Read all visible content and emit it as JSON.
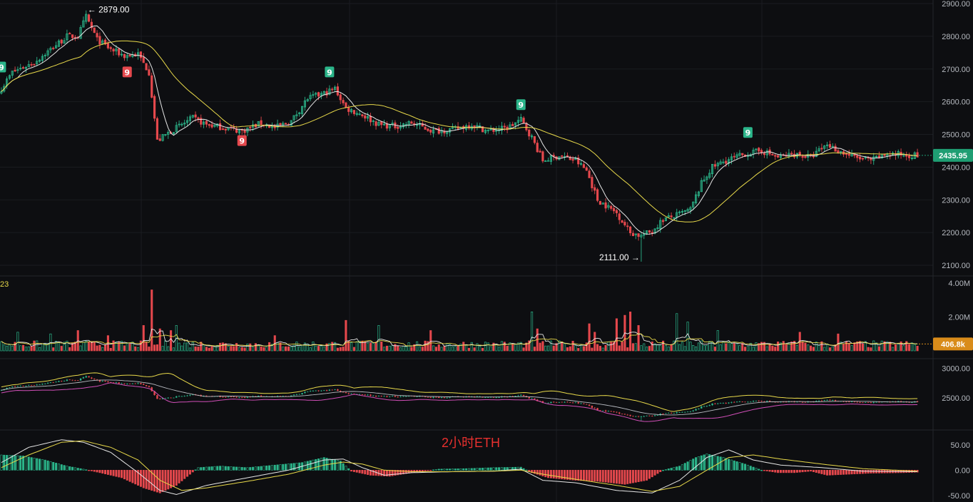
{
  "chart_data": {
    "type": "candlestick",
    "watermark_title": "2小时ETH",
    "colors": {
      "background": "#0d0e11",
      "up": "#2bb58a",
      "down": "#e5484d",
      "ma_white": "#e6e6e6",
      "ma_yellow": "#e8d94a",
      "band_magenta": "#d14fb8",
      "price_badge": "#1f9e73",
      "volume_badge": "#d98c1a"
    },
    "price_panel": {
      "ylim": [
        2100,
        2900
      ],
      "y_ticks": [
        "2900.00",
        "2800.00",
        "2700.00",
        "2600.00",
        "2500.00",
        "2400.00",
        "2300.00",
        "2200.00",
        "2100.00"
      ],
      "current_price": "2435.95",
      "high_label": "2879.00",
      "low_label": "2111.00",
      "high_value": 2879,
      "low_value": 2111,
      "anchors": [
        [
          0,
          2640
        ],
        [
          4,
          2690
        ],
        [
          12,
          2720
        ],
        [
          18,
          2760
        ],
        [
          24,
          2800
        ],
        [
          28,
          2800
        ],
        [
          31,
          2860
        ],
        [
          35,
          2790
        ],
        [
          40,
          2760
        ],
        [
          45,
          2740
        ],
        [
          50,
          2745
        ],
        [
          54,
          2690
        ],
        [
          57,
          2480
        ],
        [
          62,
          2510
        ],
        [
          70,
          2550
        ],
        [
          75,
          2530
        ],
        [
          82,
          2520
        ],
        [
          88,
          2510
        ],
        [
          95,
          2535
        ],
        [
          100,
          2520
        ],
        [
          106,
          2540
        ],
        [
          112,
          2610
        ],
        [
          118,
          2625
        ],
        [
          122,
          2640
        ],
        [
          126,
          2580
        ],
        [
          132,
          2560
        ],
        [
          138,
          2530
        ],
        [
          144,
          2525
        ],
        [
          150,
          2535
        ],
        [
          158,
          2510
        ],
        [
          165,
          2515
        ],
        [
          172,
          2530
        ],
        [
          178,
          2510
        ],
        [
          185,
          2520
        ],
        [
          190,
          2545
        ],
        [
          194,
          2490
        ],
        [
          198,
          2420
        ],
        [
          204,
          2435
        ],
        [
          210,
          2420
        ],
        [
          214,
          2390
        ],
        [
          218,
          2300
        ],
        [
          225,
          2260
        ],
        [
          230,
          2200
        ],
        [
          234,
          2190
        ],
        [
          238,
          2205
        ],
        [
          242,
          2240
        ],
        [
          246,
          2250
        ],
        [
          252,
          2270
        ],
        [
          256,
          2350
        ],
        [
          260,
          2400
        ],
        [
          265,
          2420
        ],
        [
          272,
          2440
        ],
        [
          278,
          2450
        ],
        [
          284,
          2430
        ],
        [
          290,
          2440
        ],
        [
          296,
          2430
        ],
        [
          302,
          2470
        ],
        [
          306,
          2450
        ],
        [
          312,
          2430
        ],
        [
          318,
          2420
        ],
        [
          324,
          2440
        ],
        [
          330,
          2438
        ],
        [
          335,
          2436
        ]
      ],
      "marker_labels": [
        {
          "label": "9",
          "type": "up",
          "index": 0,
          "value": 2705
        },
        {
          "label": "9",
          "type": "down",
          "index": 46,
          "value": 2690
        },
        {
          "label": "9",
          "type": "down",
          "index": 88,
          "value": 2480
        },
        {
          "label": "9",
          "type": "up",
          "index": 120,
          "value": 2690
        },
        {
          "label": "9",
          "type": "up",
          "index": 190,
          "value": 2590
        },
        {
          "label": "9",
          "type": "up",
          "index": 273,
          "value": 2505
        }
      ]
    },
    "volume_panel": {
      "label": "23",
      "y_ticks": [
        "4.00M",
        "2.00M"
      ],
      "current_volume": "406.8k",
      "ylim": [
        0,
        4.0
      ],
      "spikes": [
        [
          6,
          1.1
        ],
        [
          18,
          1.0
        ],
        [
          28,
          1.2
        ],
        [
          39,
          0.9
        ],
        [
          52,
          1.5
        ],
        [
          55,
          3.6
        ],
        [
          58,
          1.3
        ],
        [
          62,
          1.2
        ],
        [
          64,
          1.5
        ],
        [
          100,
          0.9
        ],
        [
          126,
          1.8
        ],
        [
          138,
          1.5
        ],
        [
          157,
          1.2
        ],
        [
          194,
          2.3
        ],
        [
          196,
          1.3
        ],
        [
          215,
          1.6
        ],
        [
          217,
          1.1
        ],
        [
          225,
          1.9
        ],
        [
          228,
          2.1
        ],
        [
          230,
          2.3
        ],
        [
          233,
          1.5
        ],
        [
          247,
          2.2
        ],
        [
          251,
          1.7
        ],
        [
          262,
          1.2
        ],
        [
          292,
          1.1
        ],
        [
          306,
          1.0
        ]
      ]
    },
    "band_panel": {
      "y_ticks": [
        "3000.00",
        "2500.00"
      ],
      "ylim": [
        2000,
        3100
      ]
    },
    "macd_panel": {
      "y_ticks": [
        "50.00",
        "0.00",
        "-50.00"
      ],
      "ylim": [
        -60,
        75
      ],
      "histogram_anchors": [
        [
          0,
          30
        ],
        [
          8,
          28
        ],
        [
          16,
          20
        ],
        [
          24,
          8
        ],
        [
          30,
          2
        ],
        [
          36,
          -5
        ],
        [
          44,
          -15
        ],
        [
          52,
          -35
        ],
        [
          58,
          -45
        ],
        [
          64,
          -30
        ],
        [
          72,
          5
        ],
        [
          80,
          8
        ],
        [
          90,
          5
        ],
        [
          100,
          10
        ],
        [
          110,
          15
        ],
        [
          118,
          25
        ],
        [
          124,
          18
        ],
        [
          128,
          -2
        ],
        [
          135,
          -10
        ],
        [
          142,
          -12
        ],
        [
          150,
          -5
        ],
        [
          160,
          2
        ],
        [
          170,
          3
        ],
        [
          180,
          5
        ],
        [
          190,
          6
        ],
        [
          194,
          -5
        ],
        [
          200,
          -15
        ],
        [
          210,
          -20
        ],
        [
          218,
          -22
        ],
        [
          228,
          -28
        ],
        [
          236,
          -20
        ],
        [
          242,
          0
        ],
        [
          248,
          8
        ],
        [
          254,
          25
        ],
        [
          258,
          32
        ],
        [
          264,
          25
        ],
        [
          272,
          12
        ],
        [
          278,
          0
        ],
        [
          284,
          -5
        ],
        [
          290,
          -5
        ],
        [
          296,
          -2
        ],
        [
          302,
          -10
        ],
        [
          310,
          -8
        ],
        [
          318,
          -6
        ],
        [
          330,
          -5
        ],
        [
          335,
          -4
        ]
      ],
      "dif_anchors": [
        [
          0,
          15
        ],
        [
          10,
          45
        ],
        [
          22,
          60
        ],
        [
          30,
          55
        ],
        [
          40,
          35
        ],
        [
          50,
          -5
        ],
        [
          58,
          -40
        ],
        [
          64,
          -48
        ],
        [
          75,
          -30
        ],
        [
          90,
          -15
        ],
        [
          105,
          0
        ],
        [
          118,
          20
        ],
        [
          125,
          22
        ],
        [
          132,
          5
        ],
        [
          140,
          -10
        ],
        [
          150,
          -5
        ],
        [
          165,
          -3
        ],
        [
          180,
          -2
        ],
        [
          190,
          2
        ],
        [
          198,
          -20
        ],
        [
          210,
          -25
        ],
        [
          225,
          -40
        ],
        [
          238,
          -45
        ],
        [
          248,
          -20
        ],
        [
          258,
          25
        ],
        [
          266,
          40
        ],
        [
          275,
          20
        ],
        [
          285,
          10
        ],
        [
          300,
          5
        ],
        [
          315,
          -2
        ],
        [
          335,
          -3
        ]
      ],
      "dea_anchors": [
        [
          0,
          5
        ],
        [
          10,
          30
        ],
        [
          22,
          55
        ],
        [
          30,
          58
        ],
        [
          40,
          45
        ],
        [
          50,
          20
        ],
        [
          58,
          -20
        ],
        [
          66,
          -40
        ],
        [
          75,
          -35
        ],
        [
          90,
          -22
        ],
        [
          105,
          -8
        ],
        [
          118,
          10
        ],
        [
          125,
          16
        ],
        [
          132,
          12
        ],
        [
          140,
          0
        ],
        [
          150,
          -3
        ],
        [
          165,
          -3
        ],
        [
          180,
          -2
        ],
        [
          190,
          0
        ],
        [
          198,
          -8
        ],
        [
          210,
          -18
        ],
        [
          225,
          -30
        ],
        [
          238,
          -42
        ],
        [
          248,
          -32
        ],
        [
          258,
          0
        ],
        [
          266,
          25
        ],
        [
          275,
          30
        ],
        [
          285,
          22
        ],
        [
          300,
          12
        ],
        [
          315,
          3
        ],
        [
          335,
          -2
        ]
      ]
    }
  }
}
